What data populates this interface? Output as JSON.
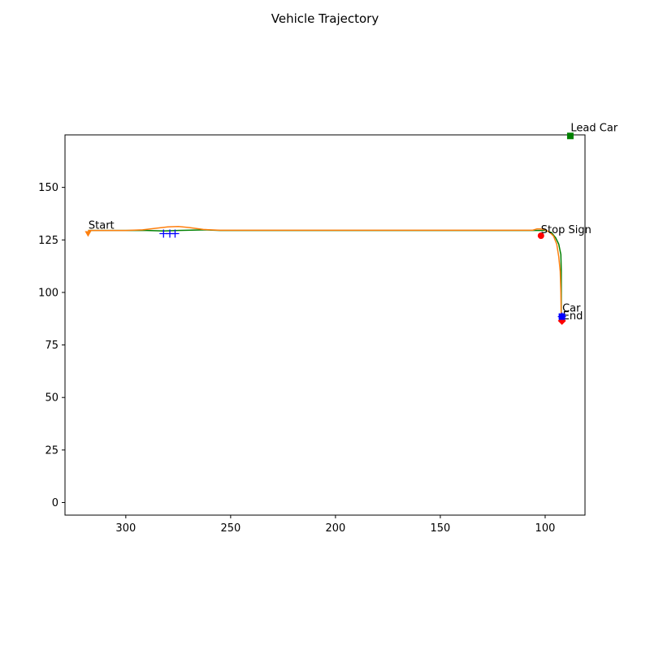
{
  "chart_data": {
    "type": "line",
    "title": "Vehicle Trajectory",
    "xlabel": "",
    "ylabel": "",
    "xlim": [
      329,
      81
    ],
    "ylim": [
      -6,
      175
    ],
    "x_reversed": true,
    "xticks": [
      300,
      250,
      200,
      150,
      100
    ],
    "yticks": [
      0,
      25,
      50,
      75,
      100,
      125,
      150
    ],
    "grid": false,
    "colors": {
      "planned_path": "#008000",
      "actual_path": "#ff7f0e",
      "markers": "#0000ff",
      "stop_sign": "#ff0000",
      "lead_car": "#008000"
    },
    "series": [
      {
        "style": "green-line",
        "x": [
          318,
          300,
          290,
          282,
          275,
          262,
          255,
          230,
          200,
          150,
          120,
          104,
          100,
          97,
          95,
          93.5,
          92.5,
          92.3,
          92.3
        ],
        "y": [
          129.5,
          129.5,
          129.5,
          129.3,
          129.5,
          129.8,
          129.5,
          129.5,
          129.5,
          129.5,
          129.5,
          129.5,
          129.5,
          128.5,
          126,
          123,
          118,
          110,
          86
        ]
      },
      {
        "style": "orange-line",
        "x": [
          318,
          300,
          292,
          285,
          280,
          275,
          270,
          263,
          255,
          230,
          200,
          150,
          120,
          106,
          104,
          102,
          100,
          98,
          96,
          94.5,
          93.5,
          92.8,
          92.5,
          92.3
        ],
        "y": [
          129.5,
          129.5,
          129.8,
          130.6,
          131.2,
          131.4,
          130.9,
          130,
          129.6,
          129.6,
          129.6,
          129.6,
          129.6,
          129.6,
          130.2,
          130.2,
          129.8,
          128.8,
          126.8,
          123,
          117,
          110,
          100,
          86
        ]
      }
    ],
    "points": [
      {
        "label": "Start",
        "x": 318,
        "y": 128,
        "marker": "triangle-down",
        "color": "#ff7f0e"
      },
      {
        "label": "End",
        "x": 92,
        "y": 86.5,
        "marker": "diamond",
        "color": "#ff0000"
      },
      {
        "label": "Stop Sign",
        "x": 102,
        "y": 127,
        "marker": "circle",
        "color": "#ff0000"
      },
      {
        "label": "Car",
        "x": 92,
        "y": 88.5,
        "marker": "square",
        "color": "#0000ff"
      },
      {
        "label": "Lead Car",
        "x": 88,
        "y": 174.5,
        "marker": "square",
        "color": "#008000"
      }
    ],
    "plus_markers": [
      {
        "x": 282,
        "y": 128,
        "color": "#0000ff"
      },
      {
        "x": 279,
        "y": 128,
        "color": "#0000ff"
      },
      {
        "x": 276.5,
        "y": 128,
        "color": "#0000ff"
      },
      {
        "x": 92,
        "y": 88.5,
        "color": "#0000ff"
      }
    ]
  }
}
